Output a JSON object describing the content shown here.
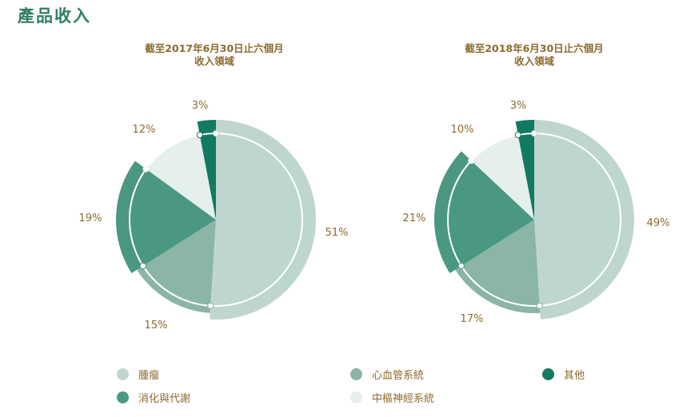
{
  "page_title": "產品收入",
  "colors": {
    "oncology": "#bfd6d0",
    "cardio": "#8bb5a6",
    "digestive": "#4a9782",
    "cns": "#e5efec",
    "other": "#127a61"
  },
  "chart_data": [
    {
      "type": "pie",
      "title_line1": "截至2017年6月30日止六個月",
      "title_line2": "收入領域",
      "categories": [
        "腫瘤",
        "心血管系統",
        "消化與代謝",
        "中樞神經系統",
        "其他"
      ],
      "values": [
        51,
        15,
        19,
        12,
        3
      ],
      "labels": [
        "51%",
        "15%",
        "19%",
        "12%",
        "3%"
      ]
    },
    {
      "type": "pie",
      "title_line1": "截至2018年6月30日止六個月",
      "title_line2": "收入領域",
      "categories": [
        "腫瘤",
        "心血管系統",
        "消化與代謝",
        "中樞神經系統",
        "其他"
      ],
      "values": [
        49,
        17,
        21,
        10,
        3
      ],
      "labels": [
        "49%",
        "17%",
        "21%",
        "10%",
        "3%"
      ]
    }
  ],
  "legend": [
    {
      "label": "腫瘤",
      "color": "#bfd6d0"
    },
    {
      "label": "心血管系統",
      "color": "#8bb5a6"
    },
    {
      "label": "其他",
      "color": "#127a61"
    },
    {
      "label": "消化與代謝",
      "color": "#4a9782"
    },
    {
      "label": "中樞神經系統",
      "color": "#e5efec"
    }
  ]
}
